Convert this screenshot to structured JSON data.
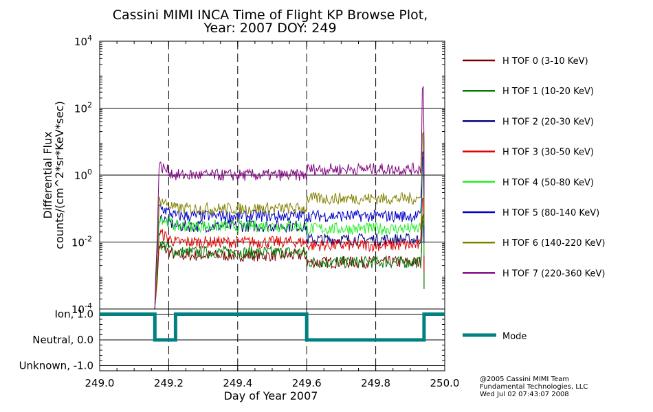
{
  "title_line1": "Cassini MIMI INCA Time of Flight KP Browse Plot,",
  "title_line2": "Year: 2007 DOY: 249",
  "credits": [
    "@2005 Cassini MIMI Team",
    "Fundamental Technologies, LLC",
    "Wed Jul 02 07:43:07 2008"
  ],
  "chart_data": [
    {
      "type": "line",
      "ylabel_line1": "Differential Flux",
      "ylabel_line2": "counts/(cm^2*sr*KeV*sec)",
      "xlim": [
        249.0,
        250.0
      ],
      "ylim_log10": [
        -4,
        4
      ],
      "y_scale": "log",
      "grid": true,
      "legend_position": "right",
      "y_ticks": [
        {
          "mantissa": "10",
          "exp": "4",
          "log": 4
        },
        {
          "mantissa": "10",
          "exp": "2",
          "log": 2
        },
        {
          "mantissa": "10",
          "exp": "0",
          "log": 0
        },
        {
          "mantissa": "10",
          "exp": "-2",
          "log": -2
        },
        {
          "mantissa": "10",
          "exp": "-4",
          "log": -4
        }
      ],
      "vertical_dashed_lines": [
        249.2,
        249.4,
        249.6,
        249.8
      ],
      "data_span": {
        "start": 249.16,
        "end": 249.94,
        "transition": 249.6
      },
      "series": [
        {
          "name": "H TOF 0 (3-10 KeV)",
          "color": "#7a0000",
          "level1": 0.004,
          "level2": 0.0025,
          "spike": 0.06
        },
        {
          "name": "H TOF 1 (10-20 KeV)",
          "color": "#007a00",
          "level1": 0.005,
          "level2": 0.0025,
          "spike": 0.08
        },
        {
          "name": "H TOF 2 (20-30 KeV)",
          "color": "#000080",
          "level1": 0.03,
          "level2": 0.012,
          "spike": 8
        },
        {
          "name": "H TOF 3 (30-50 KeV)",
          "color": "#e00000",
          "level1": 0.01,
          "level2": 0.008,
          "spike": 0.3
        },
        {
          "name": "H TOF 4 (50-80 KeV)",
          "color": "#22ee22",
          "level1": 0.03,
          "level2": 0.025,
          "spike": 3
        },
        {
          "name": "H TOF 5 (80-140 KeV)",
          "color": "#0000c8",
          "level1": 0.06,
          "level2": 0.06,
          "spike": 5
        },
        {
          "name": "H TOF 6 (140-220 KeV)",
          "color": "#808000",
          "level1": 0.1,
          "level2": 0.2,
          "spike": 30
        },
        {
          "name": "H TOF 7 (220-360 KeV)",
          "color": "#800080",
          "level1": 1.0,
          "level2": 1.5,
          "spike": 700
        }
      ]
    },
    {
      "type": "line",
      "xlabel": "Day of Year 2007",
      "x_ticks": [
        "249.0",
        "249.2",
        "249.4",
        "249.6",
        "249.8",
        "250.0"
      ],
      "x_tick_values": [
        249.0,
        249.2,
        249.4,
        249.6,
        249.8,
        250.0
      ],
      "y_ticks": [
        {
          "label": "Ion, 1.0",
          "value": 1.0
        },
        {
          "label": "Neutral, 0.0",
          "value": 0.0
        },
        {
          "label": "Unknown, -1.0",
          "value": -1.0
        }
      ],
      "ylim": [
        -1.2,
        1.2
      ],
      "series": [
        {
          "name": "Mode",
          "color": "#008080",
          "x": [
            249.0,
            249.16,
            249.16,
            249.22,
            249.22,
            249.6,
            249.6,
            249.94,
            249.94,
            250.0
          ],
          "y": [
            1,
            1,
            0,
            0,
            1,
            1,
            0,
            0,
            1,
            1
          ]
        }
      ]
    }
  ]
}
